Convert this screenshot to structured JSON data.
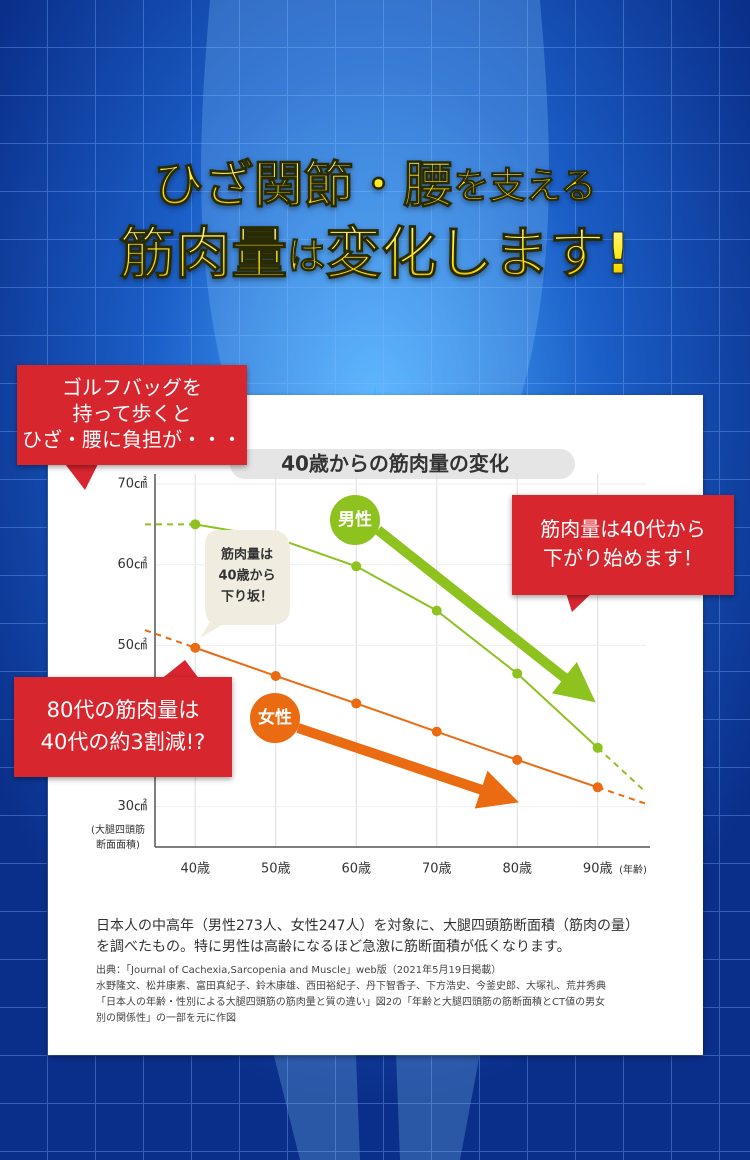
{
  "header": {
    "title_line1": [
      "ひざ関節・腰",
      "を支える"
    ],
    "title_line2": [
      "筋肉量",
      "は",
      "変化します!"
    ]
  },
  "callouts": {
    "golf": [
      "ゴルフバッグを",
      "持って歩くと",
      "ひざ・腰に負担が・・・"
    ],
    "decline": [
      "筋肉量は40代から",
      "下がり始めます！"
    ],
    "eighties": [
      "80代の筋肉量は",
      "40代の約3割減!?"
    ],
    "bubble": [
      "筋肉量は",
      "40歳から",
      "下り坂！"
    ]
  },
  "chart_data": {
    "type": "line",
    "title": "40歳からの筋肉量の変化",
    "x": [
      40,
      50,
      60,
      70,
      80,
      90
    ],
    "series": [
      {
        "name": "男性",
        "color": "#8dc21f",
        "values": [
          65.0,
          63.3,
          59.8,
          54.3,
          46.5,
          37.3
        ]
      },
      {
        "name": "女性",
        "color": "#ea6b12",
        "values": [
          49.7,
          46.2,
          42.8,
          39.3,
          35.8,
          32.4
        ]
      }
    ],
    "xlim": [
      35,
      96
    ],
    "ylim": [
      25,
      70
    ],
    "xticks": [
      {
        "value": 40,
        "label": "40歳"
      },
      {
        "value": 50,
        "label": "50歳"
      },
      {
        "value": 60,
        "label": "60歳"
      },
      {
        "value": 70,
        "label": "70歳"
      },
      {
        "value": 80,
        "label": "80歳"
      },
      {
        "value": 90,
        "label": "90歳"
      }
    ],
    "yticks": [
      {
        "value": 30,
        "label": "30㎠"
      },
      {
        "value": 50,
        "label": "50㎠"
      },
      {
        "value": 60,
        "label": "60㎠"
      },
      {
        "value": 70,
        "label": "70㎠"
      }
    ],
    "x_label": "(年齢)",
    "y_label": [
      "(大腿四頭筋",
      "断面面積)"
    ],
    "grid": true
  },
  "footnote": {
    "text": [
      "日本人の中高年（男性273人、女性247人）を対象に、大腿四頭筋断面積（筋肉の量）",
      "を調べたもの。特に男性は高齢になるほど急激に筋断面積が低くなります。"
    ],
    "source": [
      "出典：「Journal of Cachexia,Sarcopenia and Muscle」web版（2021年5月19日掲載）",
      "水野隆文、松井康素、富田真紀子、鈴木康雄、西田裕紀子、丹下智香子、下方浩史、今釜史郎、大塚礼、荒井秀典",
      "「日本人の年齢・性別による大腿四頭筋の筋肉量と質の違い」図2の「年齢と大腿四頭筋の筋断面積とCT値の男女",
      "別の関係性」の一部を元に作図"
    ]
  }
}
